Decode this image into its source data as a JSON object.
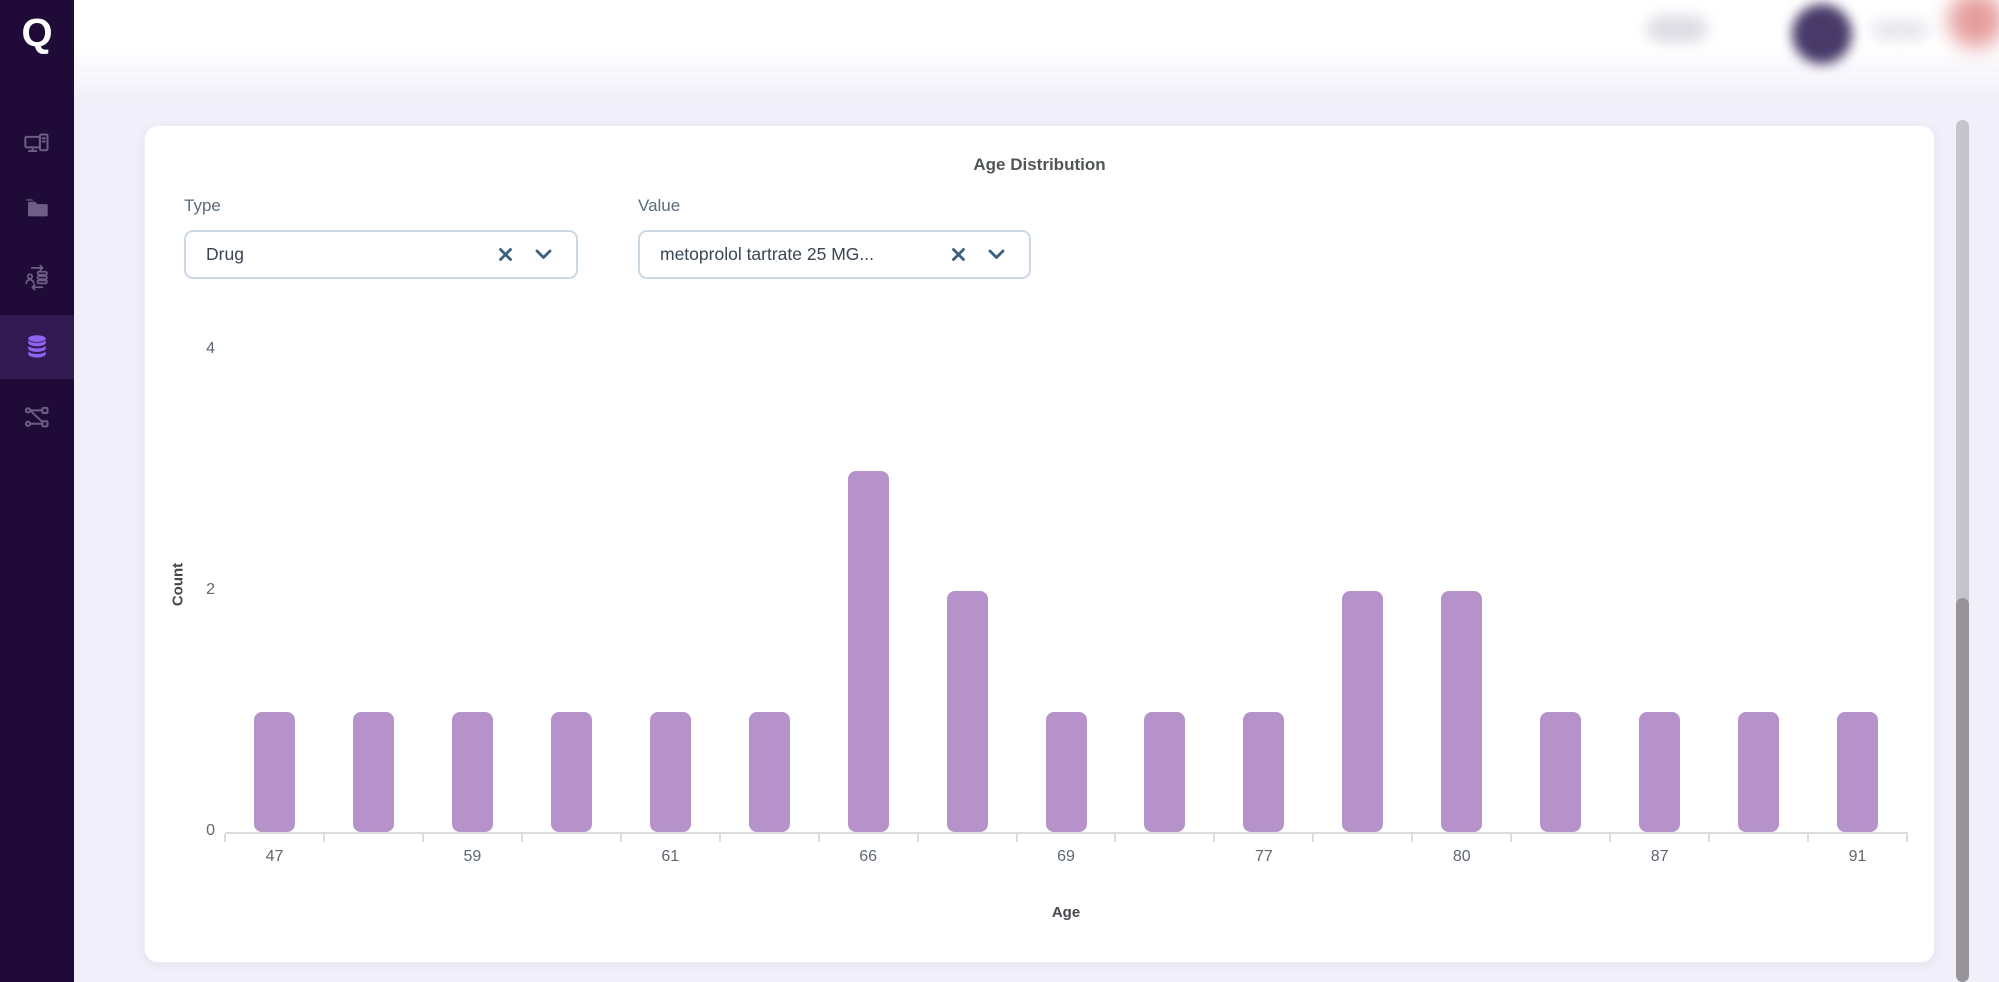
{
  "app": {
    "logo_text": "Q"
  },
  "colors": {
    "sidebar_bg": "#200a38",
    "accent_purple": "#8f62f1",
    "bar_fill": "#b592ca",
    "avatar": "#483a69",
    "page_bg": "#f1eff9"
  },
  "sidebar": {
    "items": [
      {
        "icon": "workstation-icon",
        "active": false
      },
      {
        "icon": "folder-icon",
        "active": false
      },
      {
        "icon": "data-sync-icon",
        "active": false
      },
      {
        "icon": "database-icon",
        "active": true
      },
      {
        "icon": "workflow-icon",
        "active": false
      }
    ]
  },
  "filters": {
    "type": {
      "label": "Type",
      "value": "Drug"
    },
    "value": {
      "label": "Value",
      "value": "metoprolol tartrate 25 MG..."
    }
  },
  "chart_data": {
    "type": "bar",
    "title": "Age Distribution",
    "xlabel": "Age",
    "ylabel": "Count",
    "ylim": [
      0,
      4
    ],
    "yticks": [
      0,
      2,
      4
    ],
    "grid": false,
    "legend": false,
    "bar_color": "#b592ca",
    "x_tick_labels_shown": [
      "47",
      "59",
      "61",
      "66",
      "69",
      "77",
      "80",
      "87",
      "91"
    ],
    "bars": [
      {
        "label": "47",
        "count": 1
      },
      {
        "label": "",
        "count": 1
      },
      {
        "label": "59",
        "count": 1
      },
      {
        "label": "",
        "count": 1
      },
      {
        "label": "61",
        "count": 1
      },
      {
        "label": "",
        "count": 1
      },
      {
        "label": "66",
        "count": 3
      },
      {
        "label": "",
        "count": 2
      },
      {
        "label": "69",
        "count": 1
      },
      {
        "label": "",
        "count": 1
      },
      {
        "label": "77",
        "count": 1
      },
      {
        "label": "",
        "count": 2
      },
      {
        "label": "80",
        "count": 2
      },
      {
        "label": "",
        "count": 1
      },
      {
        "label": "87",
        "count": 1
      },
      {
        "label": "",
        "count": 1
      },
      {
        "label": "91",
        "count": 1
      }
    ]
  }
}
